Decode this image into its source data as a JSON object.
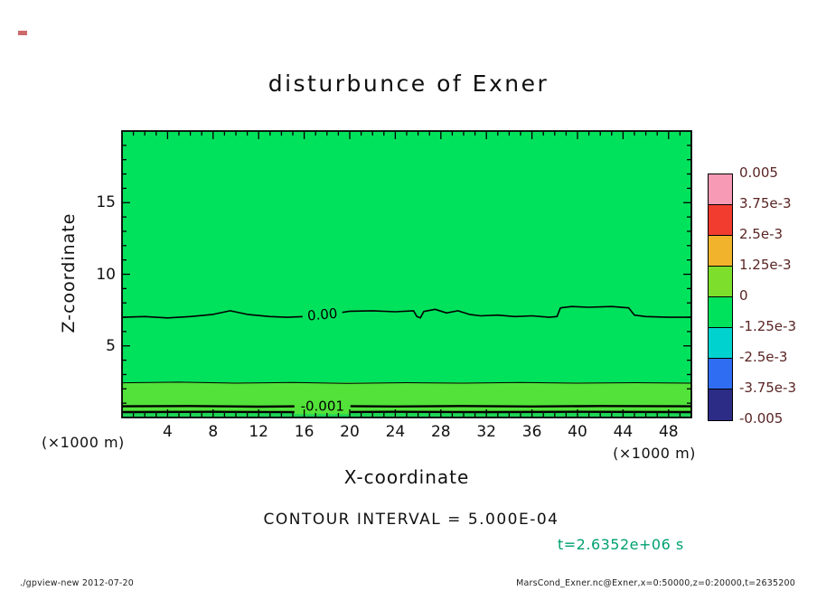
{
  "page": {
    "title": "disturbunce of Exner",
    "x_axis_label": "X-coordinate",
    "y_axis_label": "Z-coordinate",
    "x_unit_left": "(×1000 m)",
    "x_unit_right": "(×1000 m)",
    "contour_interval_note": "CONTOUR INTERVAL = 5.000E-04",
    "time_label": "t=2.6352e+06 s",
    "footer_left": "./gpview-new  2012-07-20",
    "footer_right": "MarsCond_Exner.nc@Exner,x=0:50000,z=0:20000,t=2635200"
  },
  "colors": {
    "time_label": "#00a070",
    "colorbar_label": "#5a2424",
    "axis_text": "#111111"
  },
  "chart_data": {
    "type": "heatmap",
    "title": "disturbunce of Exner",
    "xlabel": "X-coordinate",
    "ylabel": "Z-coordinate",
    "x_units": "×1000 m",
    "y_units": "×1000 m",
    "x_range": [
      0,
      50
    ],
    "y_range": [
      0,
      20
    ],
    "x_tick_labels": [
      4,
      8,
      12,
      16,
      20,
      24,
      28,
      32,
      36,
      40,
      44,
      48
    ],
    "x_minor_tick_step": 1,
    "y_tick_labels": [
      5,
      10,
      15
    ],
    "y_minor_tick_step": 1,
    "contour_interval": 0.0005,
    "time_seconds": 2635200,
    "field": {
      "background_color": "#00e25c",
      "bands": [
        {
          "z_from": 0,
          "z_to": 2.45,
          "color": "#52e23a"
        },
        {
          "z_from": 0,
          "z_to": 0.32,
          "color": "#1ed455"
        }
      ]
    },
    "contour_lines": [
      {
        "level": 0,
        "label": "0.00",
        "label_x": 17.6,
        "label_bg": "#00e25c",
        "label_tilt": -5,
        "width": 1.6,
        "points": [
          [
            0,
            7.0
          ],
          [
            2,
            7.05
          ],
          [
            4,
            6.95
          ],
          [
            6,
            7.05
          ],
          [
            8,
            7.2
          ],
          [
            9.5,
            7.45
          ],
          [
            11,
            7.2
          ],
          [
            13,
            7.05
          ],
          [
            14.5,
            7.0
          ],
          [
            16,
            7.05
          ],
          [
            19,
            7.3
          ],
          [
            20,
            7.42
          ],
          [
            22,
            7.45
          ],
          [
            24,
            7.38
          ],
          [
            25.6,
            7.45
          ],
          [
            25.9,
            7.05
          ],
          [
            26.2,
            6.95
          ],
          [
            26.5,
            7.4
          ],
          [
            27.5,
            7.55
          ],
          [
            28.5,
            7.3
          ],
          [
            29.5,
            7.45
          ],
          [
            30.5,
            7.2
          ],
          [
            31.5,
            7.1
          ],
          [
            33,
            7.15
          ],
          [
            34.5,
            7.05
          ],
          [
            36,
            7.1
          ],
          [
            37.5,
            7.0
          ],
          [
            38.2,
            7.05
          ],
          [
            38.5,
            7.65
          ],
          [
            39.5,
            7.75
          ],
          [
            41,
            7.7
          ],
          [
            43,
            7.75
          ],
          [
            44.5,
            7.65
          ],
          [
            45,
            7.15
          ],
          [
            46,
            7.05
          ],
          [
            48,
            7.0
          ],
          [
            50,
            7.0
          ]
        ]
      },
      {
        "level": -0.0005,
        "label": null,
        "width": 1.0,
        "points": [
          [
            0,
            2.42
          ],
          [
            5,
            2.47
          ],
          [
            10,
            2.4
          ],
          [
            15,
            2.44
          ],
          [
            20,
            2.38
          ],
          [
            25,
            2.43
          ],
          [
            30,
            2.4
          ],
          [
            35,
            2.45
          ],
          [
            40,
            2.4
          ],
          [
            45,
            2.43
          ],
          [
            50,
            2.4
          ]
        ]
      },
      {
        "level": -0.001,
        "label": "-0.001",
        "label_x": 17.6,
        "label_bg": "#52e23a",
        "label_tilt": 0,
        "width": 2.4,
        "points": [
          [
            0,
            0.78
          ],
          [
            6,
            0.8
          ],
          [
            12,
            0.76
          ],
          [
            18,
            0.8
          ],
          [
            24,
            0.77
          ],
          [
            30,
            0.8
          ],
          [
            36,
            0.77
          ],
          [
            42,
            0.8
          ],
          [
            50,
            0.78
          ]
        ]
      },
      {
        "level": -0.0015,
        "label": null,
        "width": 2.4,
        "points": [
          [
            0,
            0.38
          ],
          [
            8,
            0.4
          ],
          [
            16,
            0.37
          ],
          [
            24,
            0.4
          ],
          [
            32,
            0.38
          ],
          [
            40,
            0.4
          ],
          [
            50,
            0.38
          ]
        ]
      }
    ],
    "colorbar": {
      "tick_labels": [
        "0.005",
        "3.75e-3",
        "2.5e-3",
        "1.25e-3",
        "0",
        "-1.25e-3",
        "-2.5e-3",
        "-3.75e-3",
        "-0.005"
      ],
      "cell_colors_top_to_bottom": [
        "#f79ab5",
        "#f23c30",
        "#f2b32c",
        "#7ddf2c",
        "#00e25c",
        "#00d2cf",
        "#2f6ef2",
        "#2c2c86"
      ]
    }
  }
}
